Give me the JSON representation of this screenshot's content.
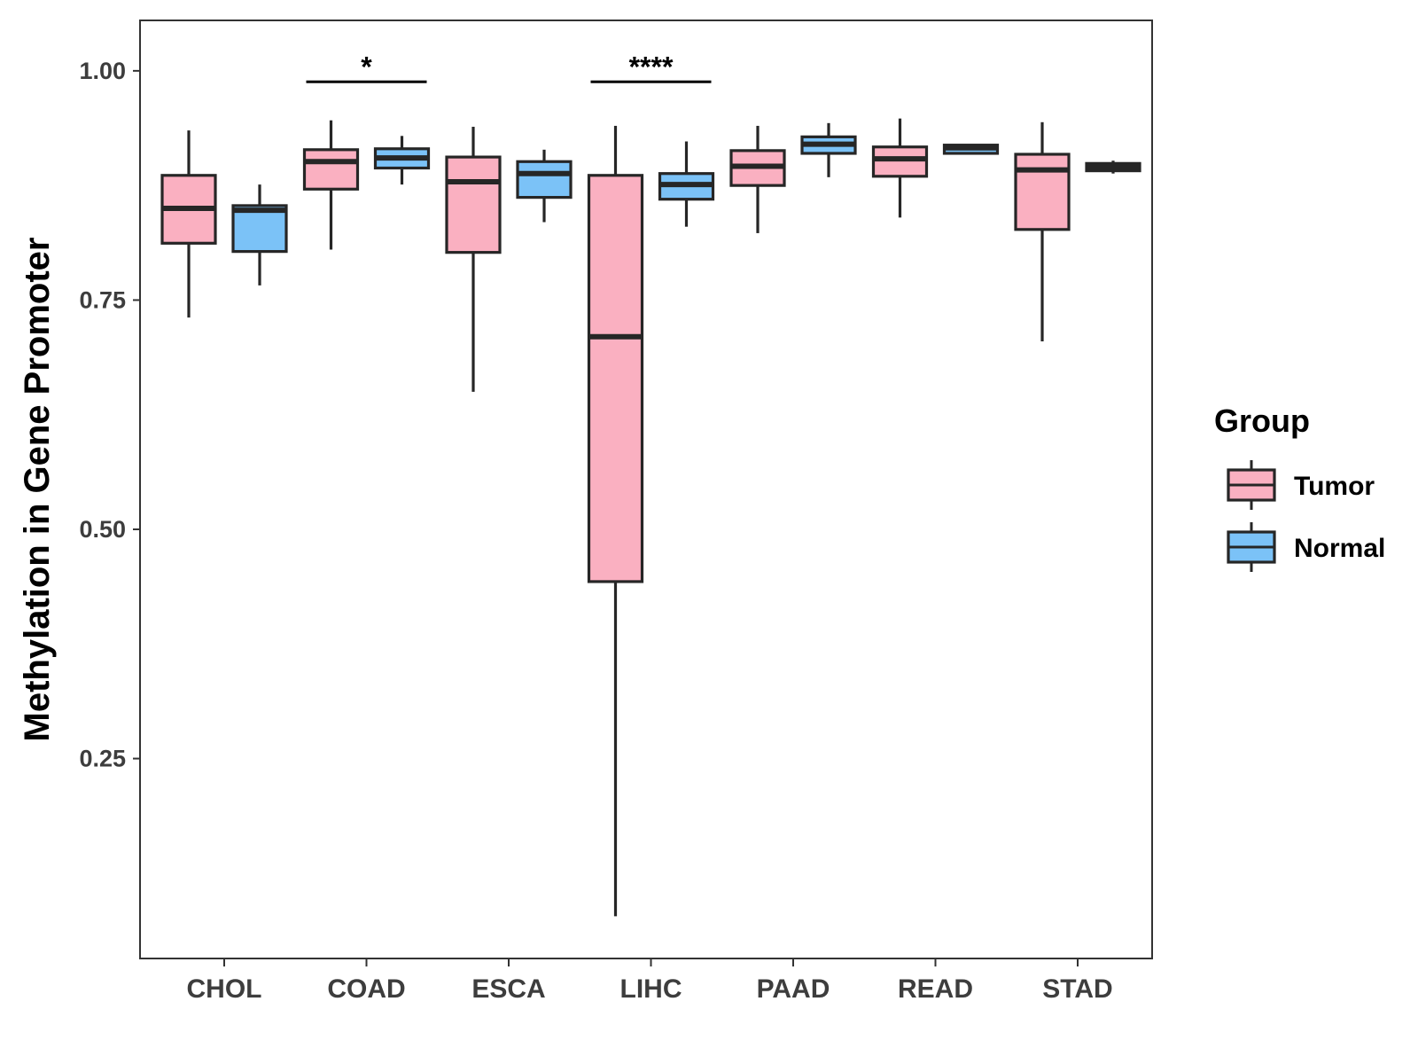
{
  "chart_data": {
    "type": "boxplot",
    "title": "",
    "xlabel": "",
    "ylabel": "Methylation in Gene Promoter",
    "ylim": [
      0.032,
      1.055
    ],
    "yticks": [
      0.25,
      0.5,
      0.75,
      1.0
    ],
    "ytick_labels": [
      "0.25",
      "0.50",
      "0.75",
      "1.00"
    ],
    "categories": [
      "CHOL",
      "COAD",
      "ESCA",
      "LIHC",
      "PAAD",
      "READ",
      "STAD"
    ],
    "grid": false,
    "legend": {
      "title": "Group",
      "position": "right",
      "entries": [
        {
          "name": "Tumor",
          "color": "#FAB0C1"
        },
        {
          "name": "Normal",
          "color": "#7BC2F7"
        }
      ]
    },
    "series": [
      {
        "name": "Tumor",
        "color": "#FAB0C1",
        "boxes": [
          {
            "category": "CHOL",
            "min": 0.731,
            "q1": 0.812,
            "median": 0.85,
            "q3": 0.886,
            "max": 0.935
          },
          {
            "category": "COAD",
            "min": 0.805,
            "q1": 0.871,
            "median": 0.901,
            "q3": 0.914,
            "max": 0.946
          },
          {
            "category": "ESCA",
            "min": 0.65,
            "q1": 0.802,
            "median": 0.879,
            "q3": 0.906,
            "max": 0.939
          },
          {
            "category": "LIHC",
            "min": 0.078,
            "q1": 0.443,
            "median": 0.71,
            "q3": 0.886,
            "max": 0.94
          },
          {
            "category": "PAAD",
            "min": 0.823,
            "q1": 0.875,
            "median": 0.896,
            "q3": 0.913,
            "max": 0.94
          },
          {
            "category": "READ",
            "min": 0.84,
            "q1": 0.885,
            "median": 0.904,
            "q3": 0.917,
            "max": 0.948
          },
          {
            "category": "STAD",
            "min": 0.705,
            "q1": 0.827,
            "median": 0.892,
            "q3": 0.909,
            "max": 0.944
          }
        ]
      },
      {
        "name": "Normal",
        "color": "#7BC2F7",
        "boxes": [
          {
            "category": "CHOL",
            "min": 0.766,
            "q1": 0.803,
            "median": 0.848,
            "q3": 0.853,
            "max": 0.876
          },
          {
            "category": "COAD",
            "min": 0.876,
            "q1": 0.894,
            "median": 0.905,
            "q3": 0.915,
            "max": 0.929
          },
          {
            "category": "ESCA",
            "min": 0.835,
            "q1": 0.862,
            "median": 0.888,
            "q3": 0.901,
            "max": 0.914
          },
          {
            "category": "LIHC",
            "min": 0.83,
            "q1": 0.86,
            "median": 0.876,
            "q3": 0.888,
            "max": 0.923
          },
          {
            "category": "PAAD",
            "min": 0.884,
            "q1": 0.91,
            "median": 0.92,
            "q3": 0.928,
            "max": 0.943
          },
          {
            "category": "READ",
            "min": 0.91,
            "q1": 0.91,
            "median": 0.916,
            "q3": 0.919,
            "max": 0.92
          },
          {
            "category": "STAD",
            "min": 0.888,
            "q1": 0.891,
            "median": 0.895,
            "q3": 0.899,
            "max": 0.902
          }
        ]
      }
    ],
    "annotations": [
      {
        "category": "COAD",
        "label": "*",
        "y": 0.988
      },
      {
        "category": "LIHC",
        "label": "****",
        "y": 0.988
      }
    ]
  }
}
